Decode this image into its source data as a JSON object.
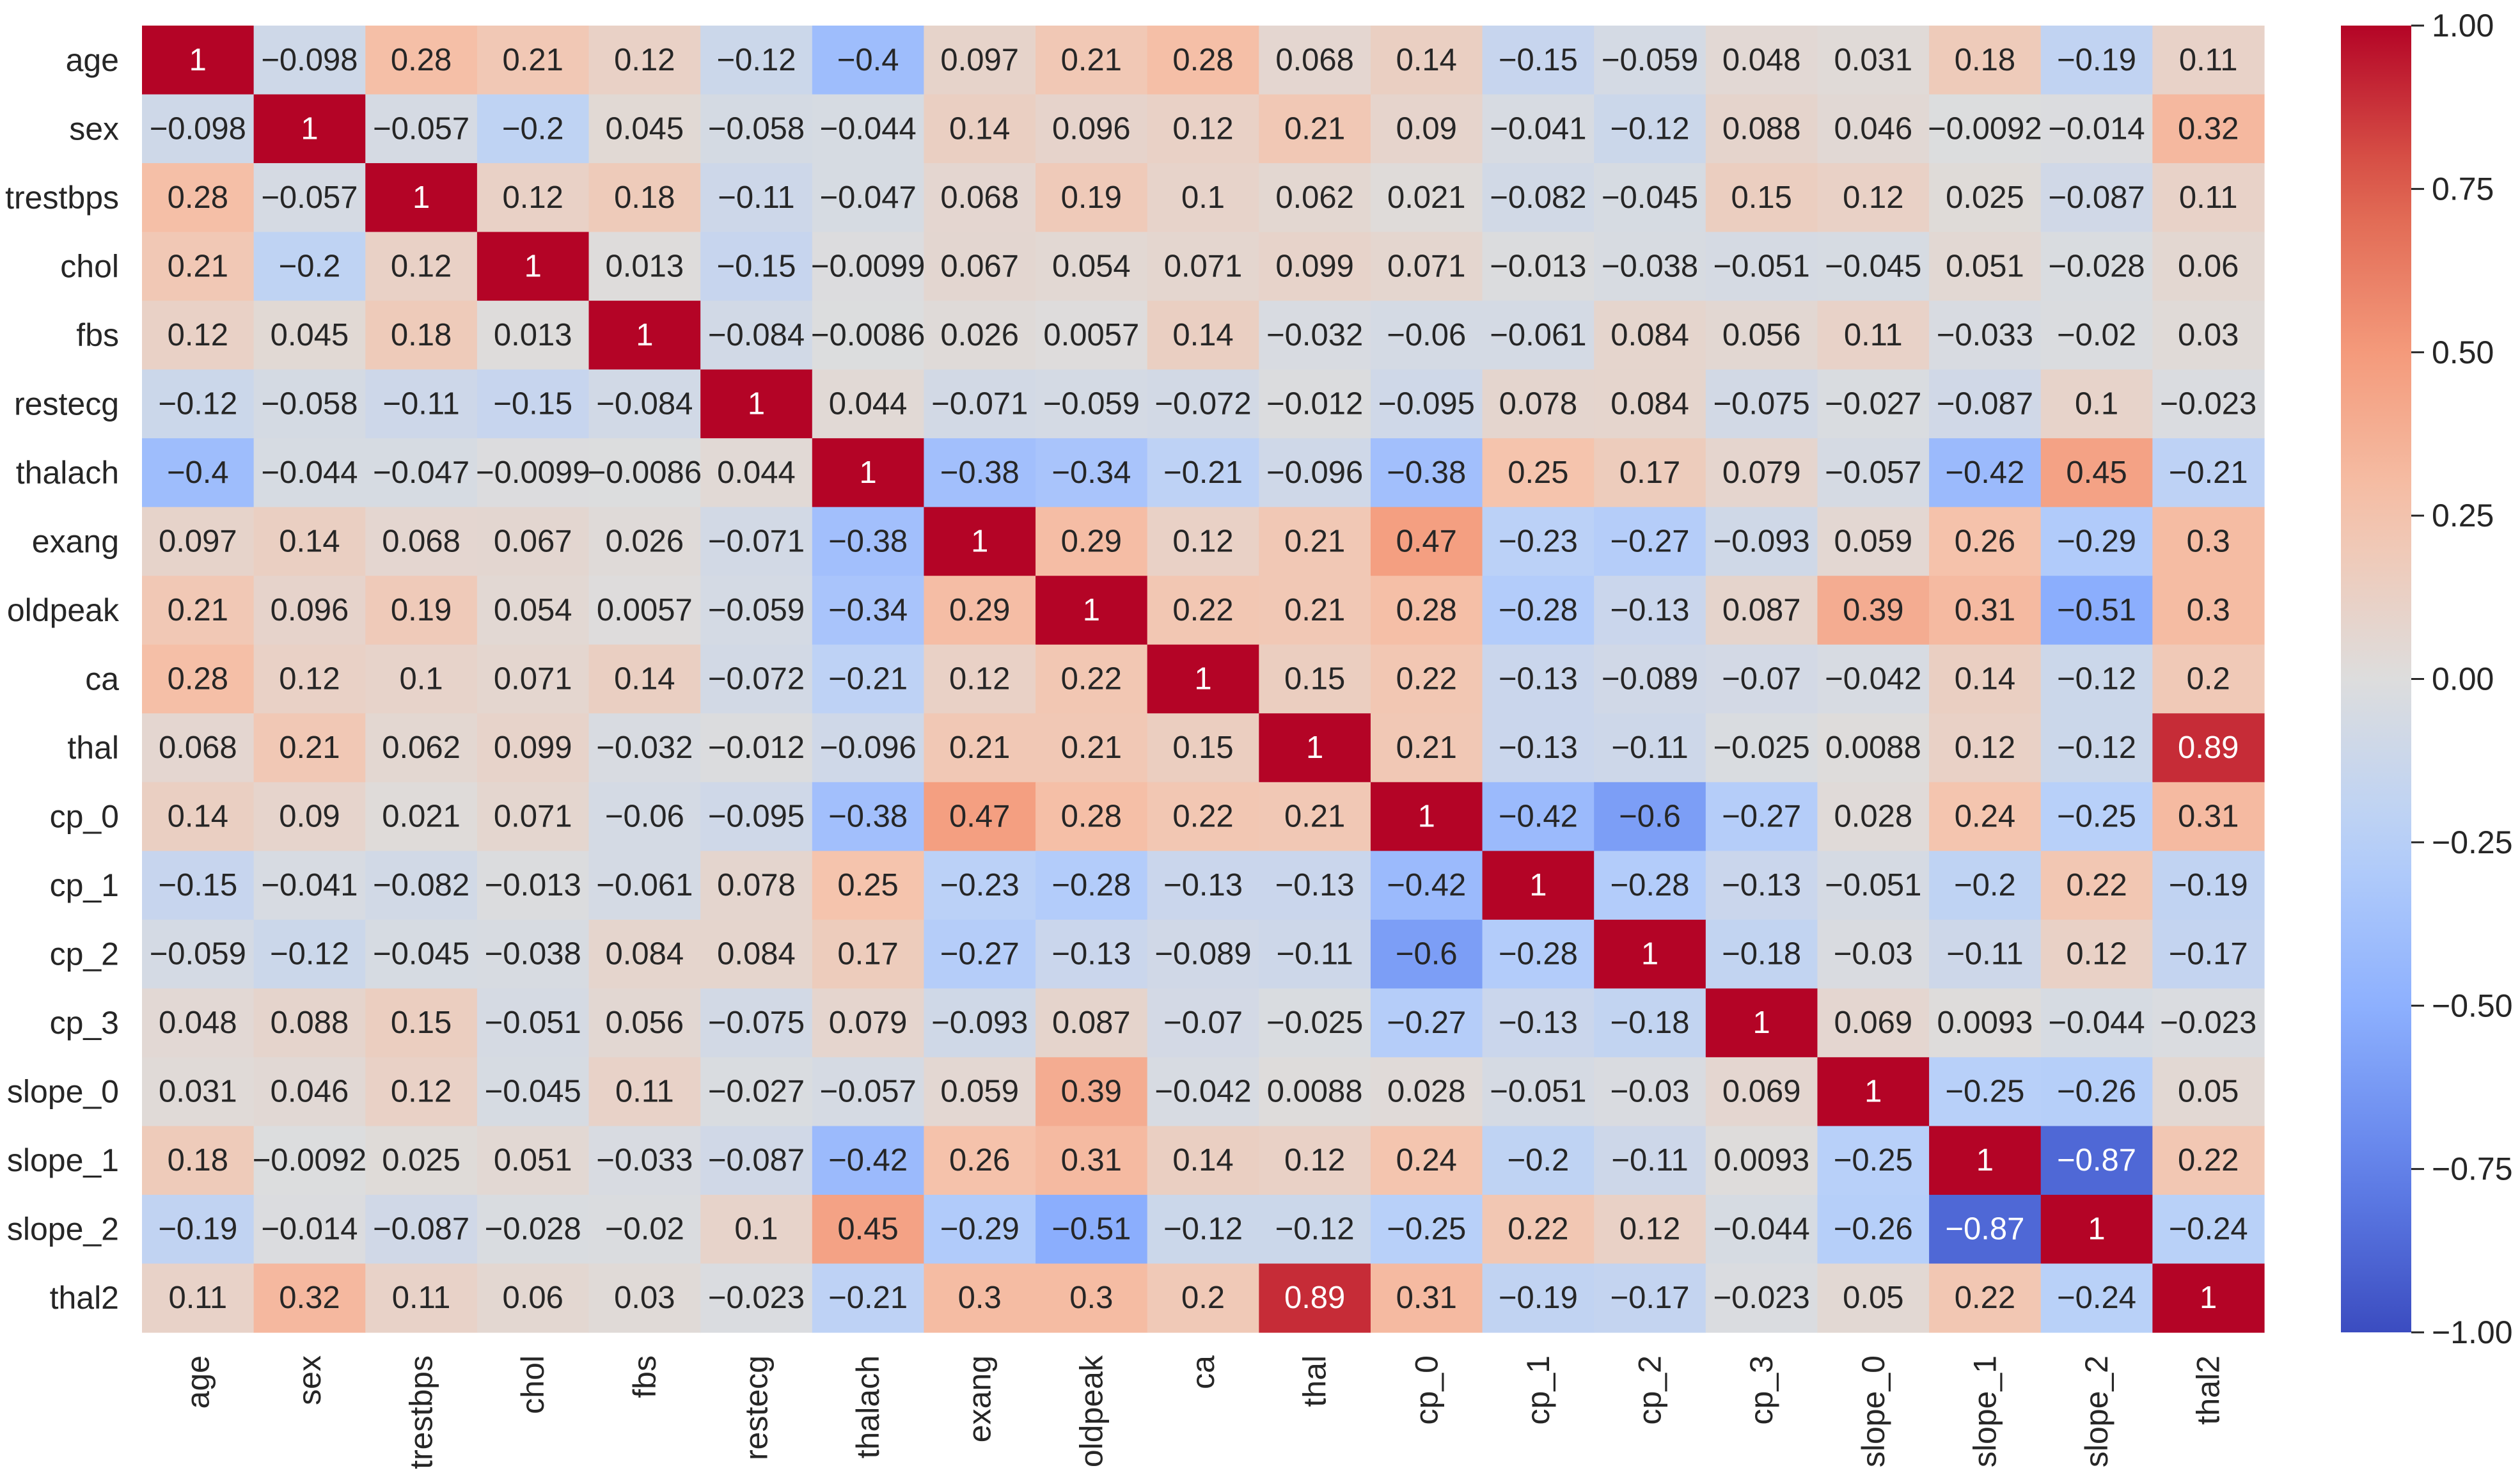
{
  "chart_data": {
    "type": "heatmap",
    "title": "",
    "xlabel": "",
    "ylabel": "",
    "colormap": "coolwarm",
    "vmin": -1.0,
    "vmax": 1.0,
    "annotations": true,
    "labels": [
      "age",
      "sex",
      "trestbps",
      "chol",
      "fbs",
      "restecg",
      "thalach",
      "exang",
      "oldpeak",
      "ca",
      "thal",
      "cp_0",
      "cp_1",
      "cp_2",
      "cp_3",
      "slope_0",
      "slope_1",
      "slope_2",
      "thal2"
    ],
    "values": [
      [
        1,
        -0.098,
        0.28,
        0.21,
        0.12,
        -0.12,
        -0.4,
        0.097,
        0.21,
        0.28,
        0.068,
        0.14,
        -0.15,
        -0.059,
        0.048,
        0.031,
        0.18,
        -0.19,
        0.11
      ],
      [
        -0.098,
        1,
        -0.057,
        -0.2,
        0.045,
        -0.058,
        -0.044,
        0.14,
        0.096,
        0.12,
        0.21,
        0.09,
        -0.041,
        -0.12,
        0.088,
        0.046,
        -0.0092,
        -0.014,
        0.32
      ],
      [
        0.28,
        -0.057,
        1,
        0.12,
        0.18,
        -0.11,
        -0.047,
        0.068,
        0.19,
        0.1,
        0.062,
        0.021,
        -0.082,
        -0.045,
        0.15,
        0.12,
        0.025,
        -0.087,
        0.11
      ],
      [
        0.21,
        -0.2,
        0.12,
        1,
        0.013,
        -0.15,
        -0.0099,
        0.067,
        0.054,
        0.071,
        0.099,
        0.071,
        -0.013,
        -0.038,
        -0.051,
        -0.045,
        0.051,
        -0.028,
        0.06
      ],
      [
        0.12,
        0.045,
        0.18,
        0.013,
        1,
        -0.084,
        -0.0086,
        0.026,
        0.0057,
        0.14,
        -0.032,
        -0.06,
        -0.061,
        0.084,
        0.056,
        0.11,
        -0.033,
        -0.02,
        0.03
      ],
      [
        -0.12,
        -0.058,
        -0.11,
        -0.15,
        -0.084,
        1,
        0.044,
        -0.071,
        -0.059,
        -0.072,
        -0.012,
        -0.095,
        0.078,
        0.084,
        -0.075,
        -0.027,
        -0.087,
        0.1,
        -0.023
      ],
      [
        -0.4,
        -0.044,
        -0.047,
        -0.0099,
        -0.0086,
        0.044,
        1,
        -0.38,
        -0.34,
        -0.21,
        -0.096,
        -0.38,
        0.25,
        0.17,
        0.079,
        -0.057,
        -0.42,
        0.45,
        -0.21
      ],
      [
        0.097,
        0.14,
        0.068,
        0.067,
        0.026,
        -0.071,
        -0.38,
        1,
        0.29,
        0.12,
        0.21,
        0.47,
        -0.23,
        -0.27,
        -0.093,
        0.059,
        0.26,
        -0.29,
        0.3
      ],
      [
        0.21,
        0.096,
        0.19,
        0.054,
        0.0057,
        -0.059,
        -0.34,
        0.29,
        1,
        0.22,
        0.21,
        0.28,
        -0.28,
        -0.13,
        0.087,
        0.39,
        0.31,
        -0.51,
        0.3
      ],
      [
        0.28,
        0.12,
        0.1,
        0.071,
        0.14,
        -0.072,
        -0.21,
        0.12,
        0.22,
        1,
        0.15,
        0.22,
        -0.13,
        -0.089,
        -0.07,
        -0.042,
        0.14,
        -0.12,
        0.2
      ],
      [
        0.068,
        0.21,
        0.062,
        0.099,
        -0.032,
        -0.012,
        -0.096,
        0.21,
        0.21,
        0.15,
        1,
        0.21,
        -0.13,
        -0.11,
        -0.025,
        0.0088,
        0.12,
        -0.12,
        0.89
      ],
      [
        0.14,
        0.09,
        0.021,
        0.071,
        -0.06,
        -0.095,
        -0.38,
        0.47,
        0.28,
        0.22,
        0.21,
        1,
        -0.42,
        -0.6,
        -0.27,
        0.028,
        0.24,
        -0.25,
        0.31
      ],
      [
        -0.15,
        -0.041,
        -0.082,
        -0.013,
        -0.061,
        0.078,
        0.25,
        -0.23,
        -0.28,
        -0.13,
        -0.13,
        -0.42,
        1,
        -0.28,
        -0.13,
        -0.051,
        -0.2,
        0.22,
        -0.19
      ],
      [
        -0.059,
        -0.12,
        -0.045,
        -0.038,
        0.084,
        0.084,
        0.17,
        -0.27,
        -0.13,
        -0.089,
        -0.11,
        -0.6,
        -0.28,
        1,
        -0.18,
        -0.03,
        -0.11,
        0.12,
        -0.17
      ],
      [
        0.048,
        0.088,
        0.15,
        -0.051,
        0.056,
        -0.075,
        0.079,
        -0.093,
        0.087,
        -0.07,
        -0.025,
        -0.27,
        -0.13,
        -0.18,
        1,
        0.069,
        0.0093,
        -0.044,
        -0.023
      ],
      [
        0.031,
        0.046,
        0.12,
        -0.045,
        0.11,
        -0.027,
        -0.057,
        0.059,
        0.39,
        -0.042,
        0.0088,
        0.028,
        -0.051,
        -0.03,
        0.069,
        1,
        -0.25,
        -0.26,
        0.05
      ],
      [
        0.18,
        -0.0092,
        0.025,
        0.051,
        -0.033,
        -0.087,
        -0.42,
        0.26,
        0.31,
        0.14,
        0.12,
        0.24,
        -0.2,
        -0.11,
        0.0093,
        -0.25,
        1,
        -0.87,
        0.22
      ],
      [
        -0.19,
        -0.014,
        -0.087,
        -0.028,
        -0.02,
        0.1,
        0.45,
        -0.29,
        -0.51,
        -0.12,
        -0.12,
        -0.25,
        0.22,
        0.12,
        -0.044,
        -0.26,
        -0.87,
        1,
        -0.24
      ],
      [
        0.11,
        0.32,
        0.11,
        0.06,
        0.03,
        -0.023,
        -0.21,
        0.3,
        0.3,
        0.2,
        0.89,
        0.31,
        -0.19,
        -0.17,
        -0.023,
        0.05,
        0.22,
        -0.24,
        1
      ]
    ],
    "colorbar": {
      "ticks": [
        1.0,
        0.75,
        0.5,
        0.25,
        0.0,
        -0.25,
        -0.5,
        -0.75,
        -1.0
      ],
      "tick_labels": [
        "1.00",
        "0.75",
        "0.50",
        "0.25",
        "0.00",
        "−0.25",
        "−0.50",
        "−0.75",
        "−1.00"
      ]
    }
  }
}
